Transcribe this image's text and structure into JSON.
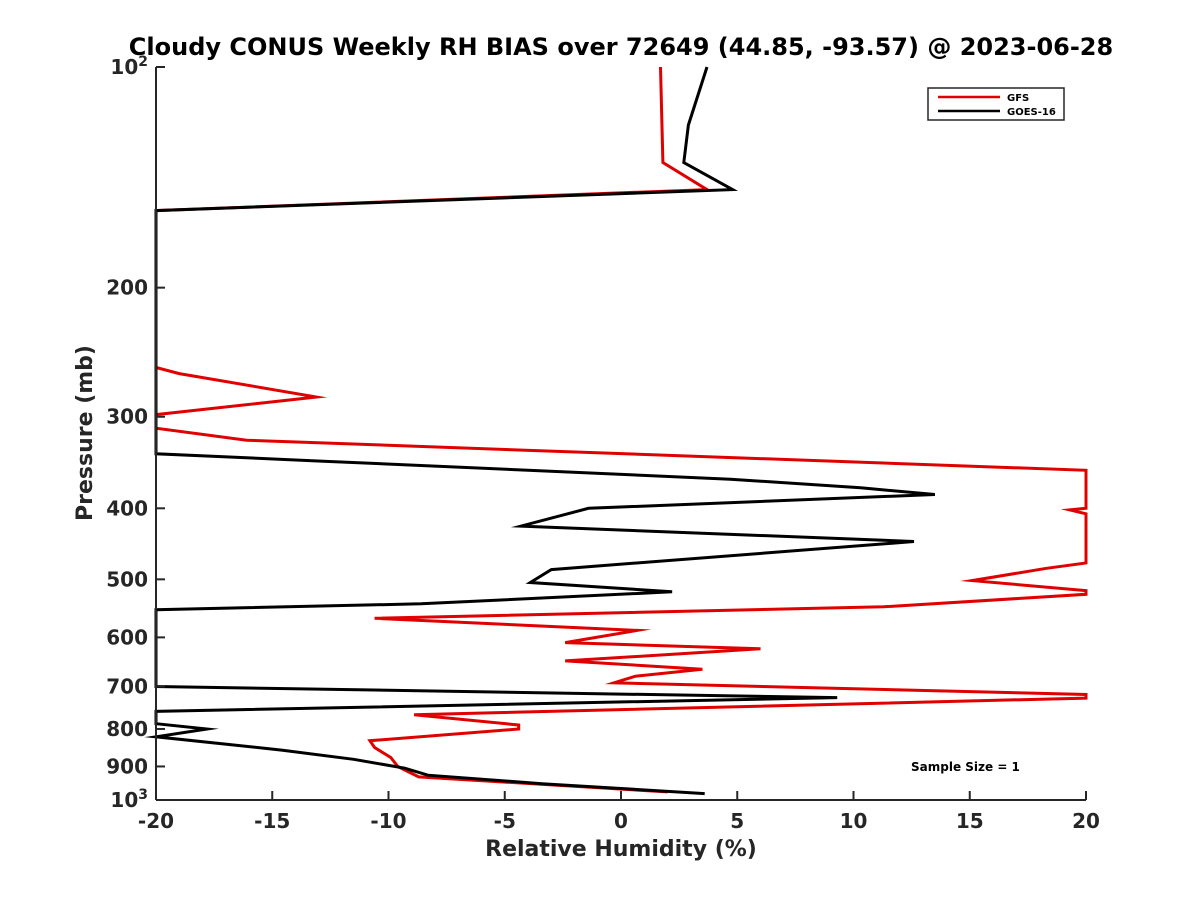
{
  "chart_data": {
    "type": "line",
    "title": "Cloudy CONUS Weekly RH BIAS over 72649 (44.85, -93.57) @ 2023-06-28",
    "xlabel": "Relative Humidity (%)",
    "ylabel": "Pressure (mb)",
    "xlim": [
      -20,
      20
    ],
    "ylim": [
      100,
      1000
    ],
    "y_scale": "log",
    "y_reversed": true,
    "grid": false,
    "legend_position": "top-right",
    "x_ticks": [
      {
        "value": -20,
        "label": "-20"
      },
      {
        "value": -15,
        "label": "-15"
      },
      {
        "value": -10,
        "label": "-10"
      },
      {
        "value": -5,
        "label": "-5"
      },
      {
        "value": 0,
        "label": "0"
      },
      {
        "value": 5,
        "label": "5"
      },
      {
        "value": 10,
        "label": "10"
      },
      {
        "value": 15,
        "label": "15"
      },
      {
        "value": 20,
        "label": "20"
      }
    ],
    "y_ticks": [
      {
        "value": 100,
        "base": "10",
        "exp": "2"
      },
      {
        "value": 200,
        "label": "200"
      },
      {
        "value": 300,
        "label": "300"
      },
      {
        "value": 400,
        "label": "400"
      },
      {
        "value": 500,
        "label": "500"
      },
      {
        "value": 600,
        "label": "600"
      },
      {
        "value": 700,
        "label": "700"
      },
      {
        "value": 800,
        "label": "800"
      },
      {
        "value": 900,
        "label": "900"
      },
      {
        "value": 1000,
        "base": "10",
        "exp": "3"
      }
    ],
    "series": [
      {
        "name": "GFS",
        "color": "#e00000",
        "points": [
          [
            1.7,
            100
          ],
          [
            1.8,
            135
          ],
          [
            3.7,
            147
          ],
          [
            -20,
            157
          ],
          [
            -20,
            257
          ],
          [
            -19,
            262
          ],
          [
            -13.1,
            282
          ],
          [
            -20,
            298
          ],
          [
            -20,
            311
          ],
          [
            -16.1,
            323
          ],
          [
            20,
            355
          ],
          [
            20,
            400
          ],
          [
            19.3,
            402
          ],
          [
            20,
            407
          ],
          [
            20,
            475
          ],
          [
            18.3,
            483
          ],
          [
            15.1,
            502
          ],
          [
            20,
            518
          ],
          [
            20,
            524
          ],
          [
            11.3,
            545
          ],
          [
            -10.6,
            565
          ],
          [
            0.7,
            587
          ],
          [
            -2.4,
            610
          ],
          [
            6,
            622
          ],
          [
            -2.4,
            646
          ],
          [
            3.5,
            663
          ],
          [
            0.6,
            678
          ],
          [
            -0.3,
            692
          ],
          [
            20,
            718
          ],
          [
            20,
            726
          ],
          [
            -8.9,
            765
          ],
          [
            -4.4,
            790
          ],
          [
            -4.4,
            800
          ],
          [
            -10.8,
            830
          ],
          [
            -10.6,
            848
          ],
          [
            -9.9,
            875
          ],
          [
            -9.6,
            900
          ],
          [
            -8.7,
            930
          ],
          [
            2,
            975
          ]
        ]
      },
      {
        "name": "GOES-16",
        "color": "#000000",
        "points": [
          [
            3.7,
            100
          ],
          [
            2.9,
            120
          ],
          [
            2.7,
            135
          ],
          [
            4.8,
            147
          ],
          [
            -20,
            157
          ],
          [
            -20,
            337
          ],
          [
            -12.8,
            345
          ],
          [
            4.7,
            365
          ],
          [
            10.3,
            375
          ],
          [
            13.5,
            383
          ],
          [
            -1.4,
            400
          ],
          [
            -4.3,
            423
          ],
          [
            12.6,
            444
          ],
          [
            -3,
            485
          ],
          [
            -3.9,
            505
          ],
          [
            2.2,
            520
          ],
          [
            -8.6,
            540
          ],
          [
            -20,
            550
          ],
          [
            -20,
            700
          ],
          [
            9.3,
            725
          ],
          [
            -20,
            757
          ],
          [
            -20,
            787
          ],
          [
            -17.8,
            800
          ],
          [
            -20,
            820
          ],
          [
            -14.6,
            855
          ],
          [
            -11.5,
            880
          ],
          [
            -9.3,
            905
          ],
          [
            -8.3,
            925
          ],
          [
            -3.4,
            950
          ],
          [
            3.6,
            980
          ]
        ]
      }
    ],
    "legend": [
      {
        "name": "GFS",
        "color": "#e00000"
      },
      {
        "name": "GOES-16",
        "color": "#000000"
      }
    ],
    "annotation": "Sample Size = 1"
  }
}
